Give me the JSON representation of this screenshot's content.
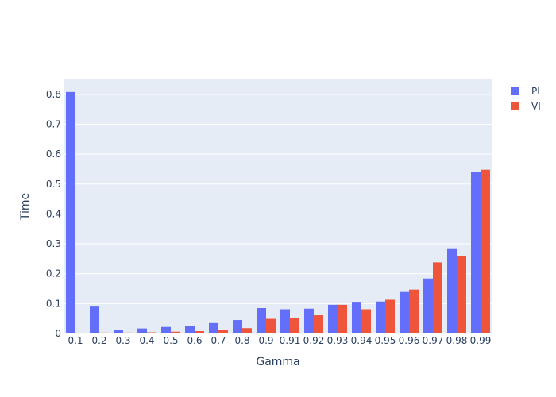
{
  "chart_data": {
    "type": "bar",
    "barmode": "group",
    "categories": [
      "0.1",
      "0.2",
      "0.3",
      "0.4",
      "0.5",
      "0.6",
      "0.7",
      "0.8",
      "0.9",
      "0.91",
      "0.92",
      "0.93",
      "0.94",
      "0.95",
      "0.96",
      "0.97",
      "0.98",
      "0.99"
    ],
    "series": [
      {
        "name": "PI",
        "color": "#636efa",
        "values": [
          0.808,
          0.09,
          0.013,
          0.017,
          0.022,
          0.025,
          0.035,
          0.045,
          0.085,
          0.081,
          0.083,
          0.096,
          0.106,
          0.107,
          0.139,
          0.184,
          0.285,
          0.54
        ]
      },
      {
        "name": "VI",
        "color": "#ef553b",
        "values": [
          0.002,
          0.003,
          0.003,
          0.004,
          0.006,
          0.008,
          0.011,
          0.018,
          0.049,
          0.053,
          0.061,
          0.096,
          0.081,
          0.113,
          0.147,
          0.238,
          0.259,
          0.548
        ]
      }
    ],
    "xlabel": "Gamma",
    "ylabel": "Time",
    "ylim": [
      0,
      0.85
    ],
    "yticks": [
      "0",
      "0.1",
      "0.2",
      "0.3",
      "0.4",
      "0.5",
      "0.6",
      "0.7",
      "0.8"
    ],
    "grid": true,
    "legend_position": "top-right",
    "plot_bg": "#e5ecf6"
  }
}
